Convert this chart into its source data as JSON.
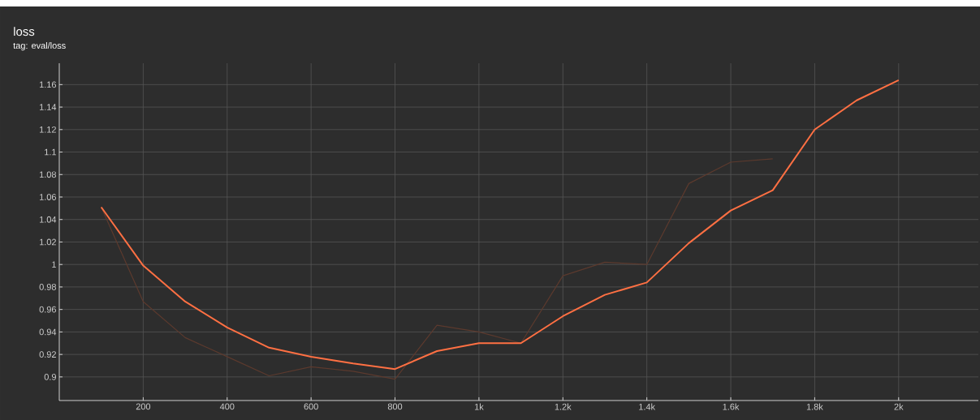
{
  "chart_data": {
    "type": "line",
    "title": "loss",
    "subtitle": "tag: eval/loss",
    "x": [
      100,
      200,
      300,
      400,
      500,
      600,
      700,
      800,
      900,
      1000,
      1100,
      1200,
      1300,
      1400,
      1500,
      1600,
      1700,
      1800,
      1900,
      2000
    ],
    "series": [
      {
        "color": "#5c3a2e",
        "values": [
          1.051,
          0.967,
          0.935,
          0.918,
          0.901,
          0.909,
          0.905,
          0.898,
          0.946,
          0.94,
          0.93,
          0.99,
          1.002,
          1.0,
          1.072,
          1.091,
          1.094,
          null,
          null,
          null
        ]
      },
      {
        "color": "#ff7043",
        "values": [
          1.051,
          0.999,
          0.967,
          0.944,
          0.926,
          0.918,
          0.912,
          0.907,
          0.923,
          0.93,
          0.93,
          0.954,
          0.973,
          0.984,
          1.019,
          1.048,
          1.066,
          1.12,
          1.146,
          1.164
        ]
      }
    ],
    "xlim": [
      0,
      2190
    ],
    "ylim": [
      0.879,
      1.179
    ],
    "xticks": [
      200,
      400,
      600,
      800,
      {
        "value": 1000,
        "label": "1k"
      },
      {
        "value": 1200,
        "label": "1.2k"
      },
      {
        "value": 1400,
        "label": "1.4k"
      },
      {
        "value": 1600,
        "label": "1.6k"
      },
      {
        "value": 1800,
        "label": "1.8k"
      },
      {
        "value": 2000,
        "label": "2k"
      }
    ],
    "yticks": [
      0.9,
      0.92,
      0.94,
      0.96,
      0.98,
      1,
      1.02,
      1.04,
      1.06,
      1.08,
      1.1,
      1.12,
      1.14,
      1.16
    ],
    "grid": true,
    "line_style": "solid",
    "marker": "none"
  }
}
